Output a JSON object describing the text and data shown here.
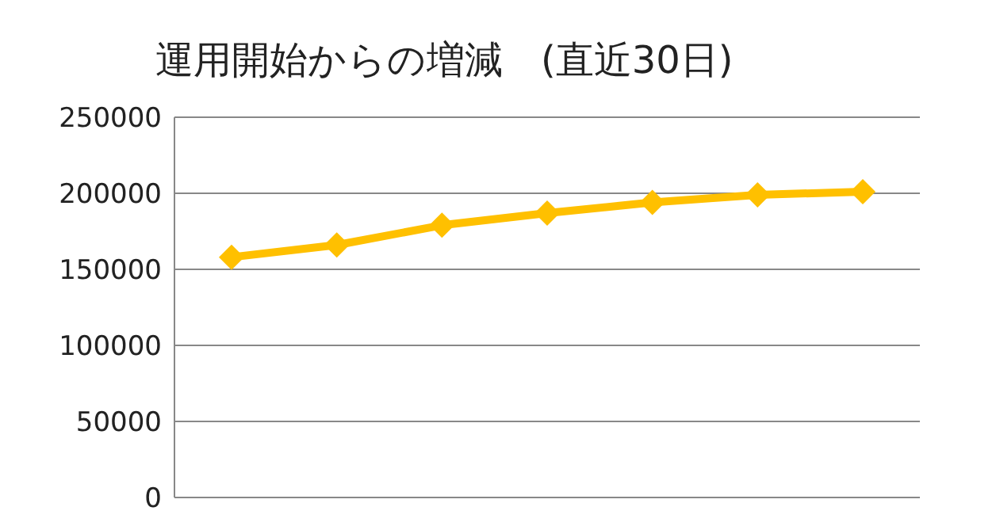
{
  "chart_data": {
    "type": "line",
    "title": "運用開始からの増減　(直近30日)",
    "categories": [
      null,
      null,
      null,
      null,
      null,
      null,
      null
    ],
    "series": [
      {
        "color": "#ffc000",
        "values": [
          158000,
          166000,
          179000,
          187000,
          194000,
          199000,
          201000
        ]
      }
    ],
    "ylim": [
      0,
      250000
    ],
    "yticks": [
      0,
      50000,
      100000,
      150000,
      200000,
      250000
    ],
    "grid": "y",
    "marker": "diamond",
    "legend": false
  }
}
